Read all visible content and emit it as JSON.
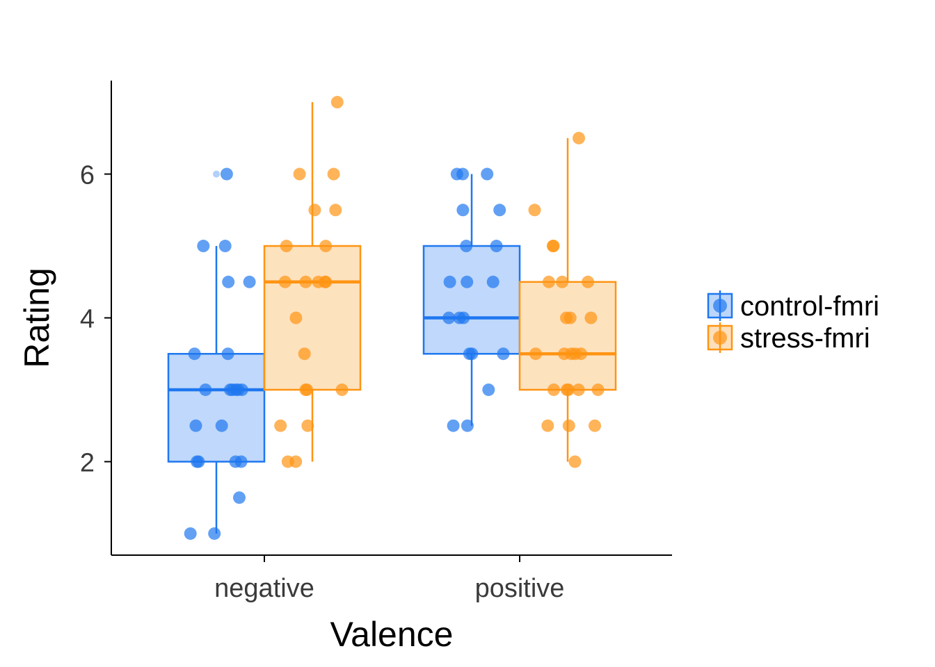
{
  "chart_data": {
    "type": "boxplot",
    "xlabel": "Valence",
    "ylabel": "Rating",
    "categories": [
      "negative",
      "positive"
    ],
    "ylim": [
      0.7,
      7.3
    ],
    "yticks": [
      2,
      4,
      6
    ],
    "grid": false,
    "legend_position": "right",
    "series": [
      {
        "name": "control-fmri",
        "color": "#1f77f0",
        "fill": "#bcd6fb",
        "boxes": [
          {
            "category": "negative",
            "q1": 2,
            "median": 3,
            "q3": 3.5,
            "whisker_low": 1,
            "whisker_high": 5,
            "outliers": [
              6
            ]
          },
          {
            "category": "positive",
            "q1": 3.5,
            "median": 4,
            "q3": 5,
            "whisker_low": 2.5,
            "whisker_high": 6,
            "outliers": []
          }
        ],
        "points": [
          {
            "category": "negative",
            "values": [
              6,
              5,
              5,
              4.5,
              4.5,
              3.5,
              3.5,
              3,
              3,
              3,
              3,
              3,
              3,
              2.5,
              2.5,
              2,
              2,
              2,
              2,
              1.5,
              1,
              1
            ]
          },
          {
            "category": "positive",
            "values": [
              6,
              6,
              6,
              5.5,
              5.5,
              5,
              5,
              4.5,
              4.5,
              4.5,
              4,
              4,
              4,
              3.5,
              3.5,
              3.5,
              3,
              2.5,
              2.5
            ]
          }
        ]
      },
      {
        "name": "stress-fmri",
        "color": "#ff9412",
        "fill": "#fde0bb",
        "boxes": [
          {
            "category": "negative",
            "q1": 3,
            "median": 4.5,
            "q3": 5,
            "whisker_low": 2,
            "whisker_high": 7,
            "outliers": []
          },
          {
            "category": "positive",
            "q1": 3,
            "median": 3.5,
            "q3": 4.5,
            "whisker_low": 2,
            "whisker_high": 6.5,
            "outliers": []
          }
        ],
        "points": [
          {
            "category": "negative",
            "values": [
              7,
              6,
              6,
              5.5,
              5.5,
              5,
              5,
              4.5,
              4.5,
              4.5,
              4.5,
              4.5,
              4,
              3.5,
              3,
              3,
              3,
              2.5,
              2.5,
              2,
              2
            ]
          },
          {
            "category": "positive",
            "values": [
              6.5,
              5.5,
              5,
              5,
              4.5,
              4.5,
              4.5,
              4,
              4,
              4,
              3.5,
              3.5,
              3.5,
              3.5,
              3.5,
              3,
              3,
              3,
              3,
              3,
              2.5,
              2.5,
              2.5,
              2
            ]
          }
        ]
      }
    ]
  }
}
